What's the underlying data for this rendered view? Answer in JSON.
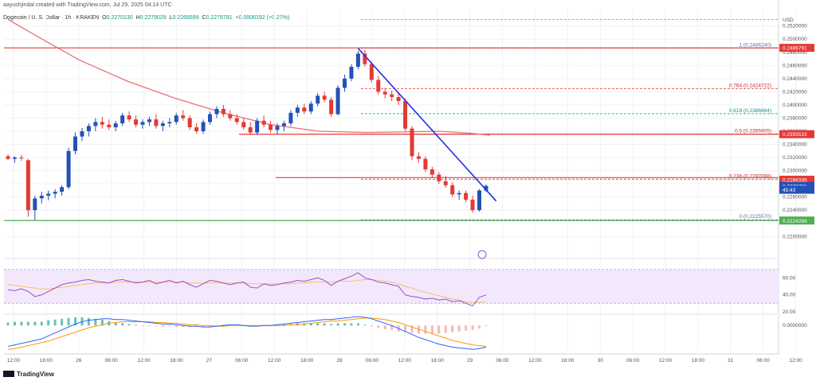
{
  "header": {
    "credit": "aayushjindal created with TradingView.com, Jul 29, 2025 04:14 UTC",
    "symbol": "Dogecoin / U. S. Dollar · 1h · KRAKEN",
    "o_label": "O",
    "o_value": "0.2270130",
    "h_label": "H",
    "h_value": "0.2279029",
    "l_label": "L",
    "l_value": "0.2268599",
    "c_label": "C",
    "c_value": "0.2276781",
    "change": "+0.0006192 (+0.27%)"
  },
  "footer": {
    "brand": "TradingView"
  },
  "colors": {
    "up": "#2451b7",
    "down": "#e53935",
    "ma": "#e57373",
    "trend": "#2233dd",
    "rsi": "#9c4dcc",
    "green": "#4caf50"
  },
  "chart_data": {
    "type": "candlestick",
    "currency_label": "USD",
    "ylim": [
      0.2175,
      0.2545
    ],
    "y_ticks": [
      "0.2520000",
      "0.2500000",
      "0.2480000",
      "0.2460000",
      "0.2440000",
      "0.2420000",
      "0.2400000",
      "0.2380000",
      "0.2360000",
      "0.2340000",
      "0.2320000",
      "0.2300000",
      "0.2280000",
      "0.2260000",
      "0.2240000",
      "0.2200000"
    ],
    "y_tick_values": [
      0.252,
      0.25,
      0.248,
      0.246,
      0.244,
      0.242,
      0.24,
      0.238,
      0.236,
      0.234,
      0.232,
      0.23,
      0.228,
      0.226,
      0.224,
      0.22
    ],
    "x_ticks": [
      "12:00",
      "18:00",
      "26",
      "06:00",
      "12:00",
      "18:00",
      "27",
      "06:00",
      "12:00",
      "18:00",
      "28",
      "06:00",
      "12:00",
      "18:00",
      "29",
      "06:00",
      "12:00",
      "18:00",
      "30",
      "06:00",
      "12:00",
      "18:00",
      "31",
      "06:00",
      "12:00"
    ],
    "candles": [
      [
        0.2322,
        0.2325,
        0.2316,
        0.2318
      ],
      [
        0.2318,
        0.2322,
        0.2312,
        0.232
      ],
      [
        0.232,
        0.2324,
        0.2315,
        0.2319
      ],
      [
        0.2316,
        0.2318,
        0.223,
        0.224
      ],
      [
        0.224,
        0.2262,
        0.2225,
        0.2258
      ],
      [
        0.2258,
        0.2268,
        0.225,
        0.2262
      ],
      [
        0.2262,
        0.227,
        0.2255,
        0.2265
      ],
      [
        0.2265,
        0.2272,
        0.2258,
        0.2268
      ],
      [
        0.2268,
        0.2278,
        0.2262,
        0.2275
      ],
      [
        0.2275,
        0.2335,
        0.2272,
        0.233
      ],
      [
        0.233,
        0.2358,
        0.2325,
        0.2352
      ],
      [
        0.2352,
        0.2365,
        0.2345,
        0.236
      ],
      [
        0.236,
        0.2372,
        0.2352,
        0.2368
      ],
      [
        0.2368,
        0.238,
        0.236,
        0.2374
      ],
      [
        0.2374,
        0.2382,
        0.2364,
        0.237
      ],
      [
        0.237,
        0.2378,
        0.2362,
        0.2366
      ],
      [
        0.2366,
        0.2376,
        0.236,
        0.2372
      ],
      [
        0.2372,
        0.2388,
        0.2368,
        0.2384
      ],
      [
        0.2384,
        0.239,
        0.2374,
        0.2378
      ],
      [
        0.2378,
        0.2384,
        0.2366,
        0.237
      ],
      [
        0.237,
        0.2378,
        0.2364,
        0.2374
      ],
      [
        0.2374,
        0.2382,
        0.2368,
        0.2378
      ],
      [
        0.2378,
        0.2386,
        0.2364,
        0.2368
      ],
      [
        0.2368,
        0.2376,
        0.236,
        0.2372
      ],
      [
        0.2372,
        0.238,
        0.2366,
        0.2374
      ],
      [
        0.2374,
        0.2388,
        0.237,
        0.2384
      ],
      [
        0.2384,
        0.2392,
        0.2376,
        0.238
      ],
      [
        0.238,
        0.2384,
        0.2362,
        0.2366
      ],
      [
        0.2366,
        0.2372,
        0.2356,
        0.236
      ],
      [
        0.236,
        0.2378,
        0.2356,
        0.2374
      ],
      [
        0.2374,
        0.239,
        0.237,
        0.2386
      ],
      [
        0.2386,
        0.2398,
        0.238,
        0.2394
      ],
      [
        0.2394,
        0.24,
        0.2382,
        0.2386
      ],
      [
        0.2386,
        0.2392,
        0.2376,
        0.238
      ],
      [
        0.238,
        0.2386,
        0.237,
        0.2374
      ],
      [
        0.2374,
        0.238,
        0.2362,
        0.2366
      ],
      [
        0.2366,
        0.2374,
        0.2354,
        0.2358
      ],
      [
        0.2358,
        0.238,
        0.2354,
        0.2376
      ],
      [
        0.2376,
        0.2384,
        0.2366,
        0.237
      ],
      [
        0.237,
        0.2376,
        0.2358,
        0.2362
      ],
      [
        0.2362,
        0.2372,
        0.2356,
        0.2368
      ],
      [
        0.2368,
        0.2376,
        0.236,
        0.2372
      ],
      [
        0.2372,
        0.2392,
        0.2368,
        0.2388
      ],
      [
        0.2388,
        0.24,
        0.2382,
        0.2396
      ],
      [
        0.2396,
        0.2402,
        0.2386,
        0.239
      ],
      [
        0.239,
        0.2406,
        0.2386,
        0.2402
      ],
      [
        0.2402,
        0.2418,
        0.2398,
        0.2414
      ],
      [
        0.2414,
        0.242,
        0.2404,
        0.2408
      ],
      [
        0.2408,
        0.2412,
        0.2382,
        0.2386
      ],
      [
        0.2386,
        0.243,
        0.2384,
        0.2426
      ],
      [
        0.2426,
        0.2446,
        0.242,
        0.244
      ],
      [
        0.244,
        0.2462,
        0.2436,
        0.2458
      ],
      [
        0.2458,
        0.2482,
        0.2454,
        0.2478
      ],
      [
        0.2478,
        0.2484,
        0.2458,
        0.2462
      ],
      [
        0.2462,
        0.2466,
        0.2434,
        0.2438
      ],
      [
        0.2438,
        0.2444,
        0.2416,
        0.242
      ],
      [
        0.242,
        0.2426,
        0.241,
        0.2416
      ],
      [
        0.2416,
        0.2422,
        0.2406,
        0.2412
      ],
      [
        0.2412,
        0.2418,
        0.24,
        0.2406
      ],
      [
        0.2406,
        0.241,
        0.236,
        0.2364
      ],
      [
        0.2364,
        0.2368,
        0.2316,
        0.2322
      ],
      [
        0.2322,
        0.2328,
        0.2312,
        0.2318
      ],
      [
        0.2318,
        0.2322,
        0.2298,
        0.2302
      ],
      [
        0.2302,
        0.2306,
        0.229,
        0.2294
      ],
      [
        0.2294,
        0.2298,
        0.228,
        0.2284
      ],
      [
        0.2284,
        0.2292,
        0.2274,
        0.2278
      ],
      [
        0.2278,
        0.2282,
        0.226,
        0.2264
      ],
      [
        0.2264,
        0.227,
        0.2256,
        0.2266
      ],
      [
        0.2266,
        0.227,
        0.2252,
        0.2256
      ],
      [
        0.2256,
        0.2262,
        0.2236,
        0.224
      ],
      [
        0.224,
        0.2272,
        0.2238,
        0.227
      ],
      [
        0.227,
        0.2279,
        0.2268,
        0.2277
      ]
    ],
    "moving_average": [
      [
        0,
        0.253
      ],
      [
        40,
        0.2502
      ],
      [
        90,
        0.2468
      ],
      [
        150,
        0.2436
      ],
      [
        210,
        0.241
      ],
      [
        270,
        0.2388
      ],
      [
        330,
        0.237
      ],
      [
        390,
        0.236
      ],
      [
        450,
        0.2358
      ],
      [
        500,
        0.2359
      ],
      [
        540,
        0.236
      ],
      [
        580,
        0.2357
      ],
      [
        605,
        0.2354
      ]
    ],
    "fib_levels": [
      {
        "ratio": "1",
        "label": "1 (0.2486240)",
        "value": 0.248624,
        "color": "#7b8ab8",
        "text_color": "#5a6fa8"
      },
      {
        "ratio": "0.764",
        "label": "0.764 (0.2424722)",
        "value": 0.2424722,
        "color": "#e53935",
        "text_color": "#c62828"
      },
      {
        "ratio": "0.618",
        "label": "0.618 (0.2386664)",
        "value": 0.2386664,
        "color": "#26a69a",
        "text_color": "#1b8c7f"
      },
      {
        "ratio": "0.5",
        "label": "0.5 (0.2355905)",
        "value": 0.2355905,
        "color": "#e53935",
        "text_color": "#c62828"
      },
      {
        "ratio": "0.236",
        "label": "0.236 (0.2287088)",
        "value": 0.2287088,
        "color": "#e53935",
        "text_color": "#c62828"
      },
      {
        "ratio": "0",
        "label": "0 (0.2225570)",
        "value": 0.222557,
        "color": "#7b8ab8",
        "text_color": "#5a6fa8"
      }
    ],
    "horizontal_lines": [
      {
        "value": 0.248675,
        "color": "#e53935"
      },
      {
        "value": 0.23555,
        "color": "#e53935"
      },
      {
        "value": 0.22895,
        "color": "#e53935"
      },
      {
        "value": 0.2224268,
        "color": "#4caf50"
      }
    ],
    "trend_line": {
      "start": [
        0.2486,
        52
      ],
      "end": [
        0.2254,
        72.5
      ]
    },
    "price_labels": [
      {
        "text": "0.2486791",
        "value": 0.2486791,
        "color": "#e53935"
      },
      {
        "text": "0.2355515",
        "value": 0.2355515,
        "color": "#e53935"
      },
      {
        "text": "0.2286335",
        "value": 0.2286335,
        "color": "#e53935"
      },
      {
        "text": "0.2276781",
        "value": 0.2276781,
        "color": "#2451b7"
      },
      {
        "text": "45:43",
        "value": 0.2271,
        "color": "#2451b7"
      },
      {
        "text": "0.2224268",
        "value": 0.2224268,
        "color": "#4caf50"
      }
    ],
    "rsi": {
      "ylim": [
        20,
        80
      ],
      "ticks": [
        "60.00",
        "40.00",
        "20.00"
      ],
      "tick_values": [
        60,
        40,
        20
      ],
      "band": [
        30,
        70
      ],
      "values": [
        46,
        45,
        47,
        44,
        38,
        40,
        44,
        48,
        52,
        54,
        55,
        57,
        58,
        56,
        55,
        54,
        57,
        58,
        56,
        54,
        55,
        57,
        53,
        55,
        57,
        54,
        56,
        52,
        49,
        53,
        57,
        56,
        54,
        52,
        54,
        55,
        49,
        48,
        53,
        51,
        52,
        54,
        55,
        57,
        56,
        58,
        60,
        57,
        51,
        56,
        59,
        62,
        66,
        60,
        58,
        55,
        54,
        52,
        50,
        40,
        38,
        37,
        35,
        36,
        34,
        35,
        32,
        33,
        30,
        27,
        37,
        40
      ],
      "signal": [
        52,
        51,
        50,
        49,
        48,
        47,
        47,
        48,
        49,
        50,
        51,
        52,
        53,
        54,
        54,
        54,
        55,
        55,
        55,
        55,
        55,
        55,
        55,
        55,
        55,
        55,
        55,
        54,
        54,
        54,
        54,
        54,
        54,
        54,
        54,
        54,
        53,
        53,
        53,
        53,
        53,
        53,
        53,
        54,
        54,
        55,
        55,
        55,
        55,
        56,
        56,
        56,
        57,
        58,
        58,
        57,
        56,
        55,
        53,
        50,
        48,
        45,
        43,
        41,
        39,
        37,
        35,
        34,
        32,
        31,
        31,
        32
      ]
    },
    "macd": {
      "ticks": [
        "0.0000000"
      ],
      "tick_values": [
        0
      ],
      "ylim": [
        -0.0035,
        0.0012
      ],
      "macd_line": [
        -0.0028,
        -0.0026,
        -0.0024,
        -0.0022,
        -0.002,
        -0.0018,
        -0.0014,
        -0.001,
        -0.0006,
        -0.0002,
        0.0002,
        0.0005,
        0.0007,
        0.0008,
        0.0009,
        0.0009,
        0.0008,
        0.0008,
        0.0007,
        0.0006,
        0.0005,
        0.0004,
        0.0003,
        0.0002,
        0.0002,
        0.0001,
        0.0,
        -0.0001,
        -0.0001,
        -0.0002,
        -0.0002,
        -0.0001,
        0.0,
        0.0001,
        0.0001,
        0.0,
        -0.0001,
        -0.0001,
        0.0,
        0.0,
        0.0001,
        0.0002,
        0.0003,
        0.0004,
        0.0005,
        0.0006,
        0.0007,
        0.0008,
        0.0008,
        0.0009,
        0.001,
        0.0011,
        0.0012,
        0.0011,
        0.0009,
        0.0006,
        0.0003,
        0.0,
        -0.0004,
        -0.0008,
        -0.0012,
        -0.0016,
        -0.0019,
        -0.0022,
        -0.0025,
        -0.0027,
        -0.0029,
        -0.003,
        -0.0031,
        -0.0032,
        -0.0031,
        -0.0029
      ],
      "signal_line": [
        -0.0032,
        -0.0031,
        -0.0029,
        -0.0027,
        -0.0025,
        -0.0023,
        -0.0021,
        -0.0018,
        -0.0015,
        -0.0012,
        -0.0009,
        -0.0006,
        -0.0003,
        -0.0001,
        0.0001,
        0.0003,
        0.0004,
        0.0005,
        0.0005,
        0.0005,
        0.0005,
        0.0005,
        0.0004,
        0.0004,
        0.0003,
        0.0003,
        0.0002,
        0.0001,
        0.0001,
        0.0,
        0.0,
        -0.0001,
        -0.0001,
        0.0,
        0.0,
        0.0,
        0.0,
        0.0,
        0.0,
        0.0,
        0.0,
        0.0,
        0.0001,
        0.0001,
        0.0002,
        0.0003,
        0.0004,
        0.0005,
        0.0006,
        0.0006,
        0.0007,
        0.0008,
        0.0009,
        0.001,
        0.001,
        0.0009,
        0.0008,
        0.0006,
        0.0004,
        0.0001,
        -0.0002,
        -0.0005,
        -0.0008,
        -0.0011,
        -0.0014,
        -0.0017,
        -0.002,
        -0.0022,
        -0.0024,
        -0.0026,
        -0.0027,
        -0.0028
      ]
    }
  }
}
